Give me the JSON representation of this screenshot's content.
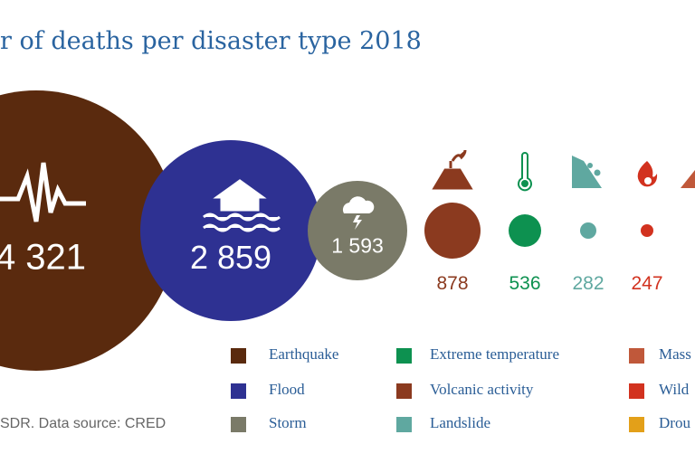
{
  "chart_data": {
    "type": "bubble",
    "title": "r of deaths per disaster type 2018",
    "source": "SDR. Data source: CRED",
    "bubbles": [
      {
        "category": "Earthquake",
        "label": "4 321",
        "value": 4321,
        "color": "#5a2a0e",
        "icon": "seismograph-icon"
      },
      {
        "category": "Flood",
        "label": "2 859",
        "value": 2859,
        "color": "#2e3192",
        "icon": "flood-house-icon"
      },
      {
        "category": "Storm",
        "label": "1 593",
        "value": 1593,
        "color": "#7a7a68",
        "icon": "storm-cloud-icon"
      },
      {
        "category": "Volcanic activity",
        "label": "878",
        "value": 878,
        "color": "#8b3a1f",
        "icon": "volcano-icon"
      },
      {
        "category": "Extreme temperature",
        "label": "536",
        "value": 536,
        "color": "#0d9150",
        "icon": "thermometer-icon"
      },
      {
        "category": "Landslide",
        "label": "282",
        "value": 282,
        "color": "#5fa8a0",
        "icon": "landslide-icon"
      },
      {
        "category": "Wildfire",
        "label": "247",
        "value": 247,
        "color": "#d2321f",
        "icon": "fire-icon"
      }
    ],
    "legend": [
      {
        "label": "Earthquake",
        "color": "#5a2a0e"
      },
      {
        "label": "Flood",
        "color": "#2e3192"
      },
      {
        "label": "Storm",
        "color": "#7a7a68"
      },
      {
        "label": "Extreme temperature",
        "color": "#0d9150"
      },
      {
        "label": "Volcanic activity",
        "color": "#8b3a1f"
      },
      {
        "label": "Landslide",
        "color": "#5fa8a0"
      },
      {
        "label": "Mass",
        "color": "#c0583a"
      },
      {
        "label": "Wild",
        "color": "#d2321f"
      },
      {
        "label": "Drou",
        "color": "#e3a019"
      }
    ]
  }
}
